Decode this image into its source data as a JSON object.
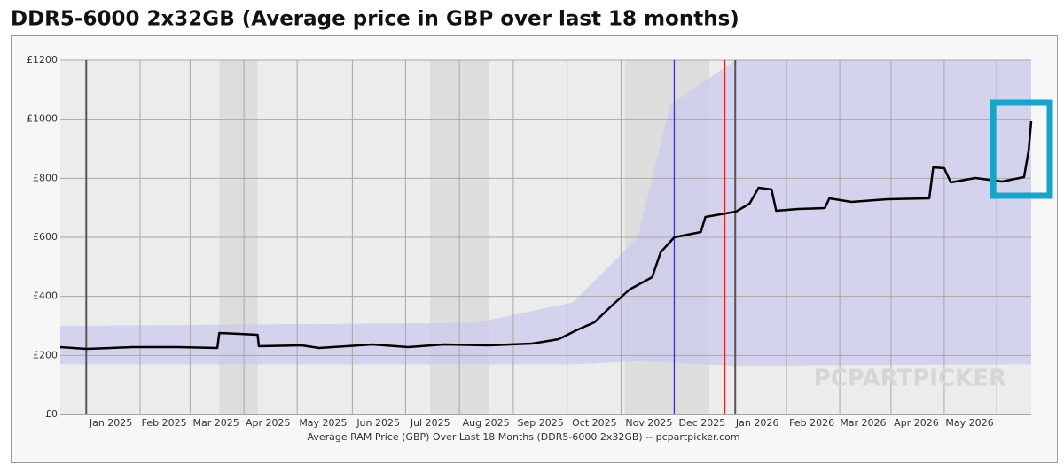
{
  "chart_data": {
    "type": "line",
    "title": "DDR5-6000 2x32GB (Average price in GBP over last 18 months)",
    "x_label": "Average RAM Price (GBP) Over Last 18 Months (DDR5-6000 2x32GB) -- pcpartpicker.com",
    "watermark": "PCPARTPICKER",
    "color": "#000000",
    "x": [
      2024.96,
      2025.0,
      2025.072,
      2025.141,
      2025.202,
      2025.205,
      2025.264,
      2025.266,
      2025.332,
      2025.359,
      2025.441,
      2025.496,
      2025.551,
      2025.619,
      2025.687,
      2025.728,
      2025.755,
      2025.783,
      2025.81,
      2025.837,
      2025.872,
      2025.885,
      2025.906,
      2025.947,
      2025.954,
      2026.001,
      2026.022,
      2026.036,
      2026.056,
      2026.063,
      2026.097,
      2026.138,
      2026.145,
      2026.179,
      2026.234,
      2026.299,
      2026.305,
      2026.322,
      2026.332,
      2026.37,
      2026.411,
      2026.445,
      2026.452,
      2026.456
    ],
    "values": [
      228,
      222,
      228,
      228,
      225,
      276,
      270,
      231,
      234,
      225,
      237,
      228,
      237,
      234,
      240,
      255,
      285,
      312,
      369,
      423,
      465,
      549,
      600,
      618,
      669,
      687,
      714,
      768,
      762,
      690,
      696,
      699,
      732,
      720,
      729,
      732,
      837,
      834,
      786,
      801,
      789,
      804,
      894,
      993
    ],
    "band": {
      "color": "#c9c9ee",
      "x": [
        2024.96,
        2025.6,
        2025.75,
        2025.85,
        2025.9,
        2026.0,
        2026.456
      ],
      "low": [
        170,
        170,
        170,
        180,
        175,
        165,
        170
      ],
      "high": [
        300,
        310,
        380,
        600,
        1050,
        1200,
        1200
      ]
    },
    "shaded_ranges": [
      [
        2025.205,
        2025.264
      ],
      [
        2025.53,
        2025.62
      ],
      [
        2025.83,
        2025.96
      ]
    ],
    "markers": [
      {
        "x": 2025.906,
        "color": "#3333cc"
      },
      {
        "x": 2025.984,
        "color": "#dd2222"
      }
    ],
    "xlim": [
      2024.96,
      2026.456
    ],
    "ylim": [
      0,
      1200
    ],
    "yticks": [
      {
        "value": 0,
        "label": "£0"
      },
      {
        "value": 200,
        "label": "£200"
      },
      {
        "value": 400,
        "label": "£400"
      },
      {
        "value": 600,
        "label": "£600"
      },
      {
        "value": 800,
        "label": "£800"
      },
      {
        "value": 1000,
        "label": "£1000"
      },
      {
        "value": 1200,
        "label": "£1200"
      }
    ],
    "xticks": [
      {
        "value": 2025.038,
        "label": "Jan 2025"
      },
      {
        "value": 2025.12,
        "label": "Feb 2025"
      },
      {
        "value": 2025.2,
        "label": "Mar 2025"
      },
      {
        "value": 2025.28,
        "label": "Apr 2025"
      },
      {
        "value": 2025.365,
        "label": "May 2025"
      },
      {
        "value": 2025.45,
        "label": "Jun 2025"
      },
      {
        "value": 2025.53,
        "label": "Jul 2025"
      },
      {
        "value": 2025.616,
        "label": "Aug 2025"
      },
      {
        "value": 2025.7,
        "label": "Sep 2025"
      },
      {
        "value": 2025.783,
        "label": "Oct 2025"
      },
      {
        "value": 2025.867,
        "label": "Nov 2025"
      },
      {
        "value": 2025.949,
        "label": "Dec 2025"
      },
      {
        "value": 2026.034,
        "label": "Jan 2026"
      },
      {
        "value": 2026.118,
        "label": "Feb 2026"
      },
      {
        "value": 2026.197,
        "label": "Mar 2026"
      },
      {
        "value": 2026.279,
        "label": "Apr 2026"
      },
      {
        "value": 2026.361,
        "label": "May 2026"
      }
    ],
    "xgrid": [
      2025,
      2025.083,
      2025.16,
      2025.243,
      2025.325,
      2025.41,
      2025.492,
      2025.575,
      2025.658,
      2025.741,
      2025.824,
      2025.906,
      2026,
      2026.079,
      2026.161,
      2026.24,
      2026.322,
      2026.403
    ],
    "grid": true
  }
}
